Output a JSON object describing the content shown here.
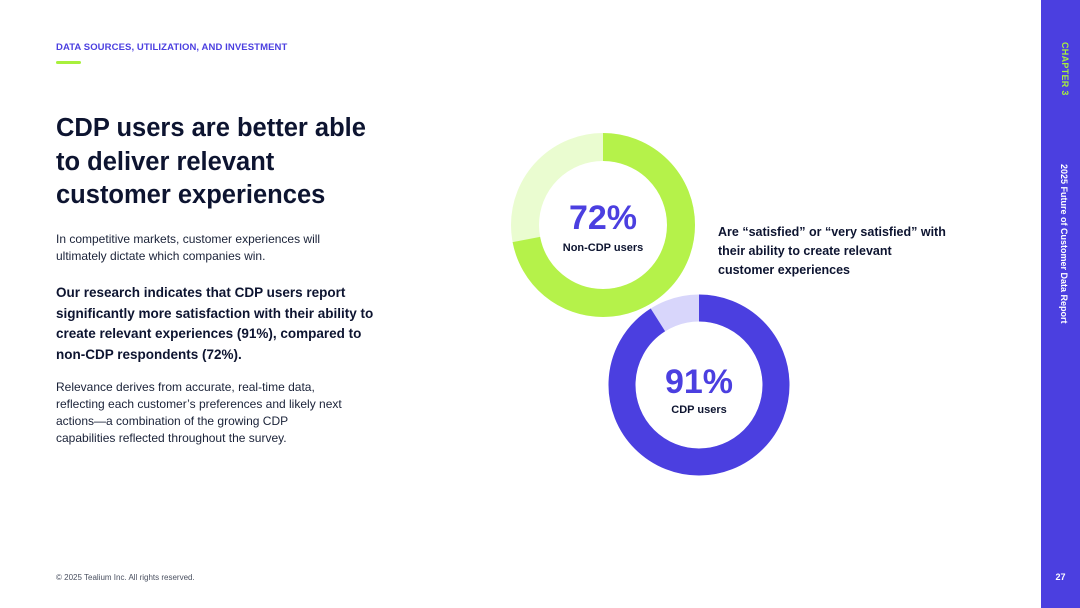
{
  "header": {
    "section_label": "DATA SOURCES, UTILIZATION, AND INVESTMENT"
  },
  "content": {
    "headline": "CDP users are better able to deliver relevant customer experiences",
    "intro": "In competitive markets, customer experiences will ultimately dictate which companies win.",
    "research": "Our research indicates that CDP users report significantly more satisfaction with their ability to create relevant experiences (91%), compared to non-CDP respondents (72%).",
    "relevance": "Relevance derives from accurate, real-time data, reflecting each customer’s preferences and likely next actions—a combination of the growing CDP capabilities reflected throughout the survey."
  },
  "chart_data": {
    "type": "pie",
    "title": "Are “satisfied” or “very satisfied” with their ability to create relevant customer experiences",
    "series": [
      {
        "name": "Non-CDP users",
        "value": 72,
        "label": "72%",
        "color": "#b5f24a",
        "remainder_color": "#eafcd0"
      },
      {
        "name": "CDP users",
        "value": 91,
        "label": "91%",
        "color": "#4b3fe0",
        "remainder_color": "#d8d6fb"
      }
    ]
  },
  "annotation": "Are “satisfied” or “very satisfied” with their ability to create relevant customer experiences",
  "footer": {
    "copyright": "© 2025 Tealium Inc. All rights reserved."
  },
  "sidebar": {
    "chapter": "CHAPTER 3",
    "report_title": "2025 Future of Customer Data Report",
    "page_number": "27"
  },
  "colors": {
    "accent_purple": "#4b3fe0",
    "accent_green": "#a8f03c"
  }
}
